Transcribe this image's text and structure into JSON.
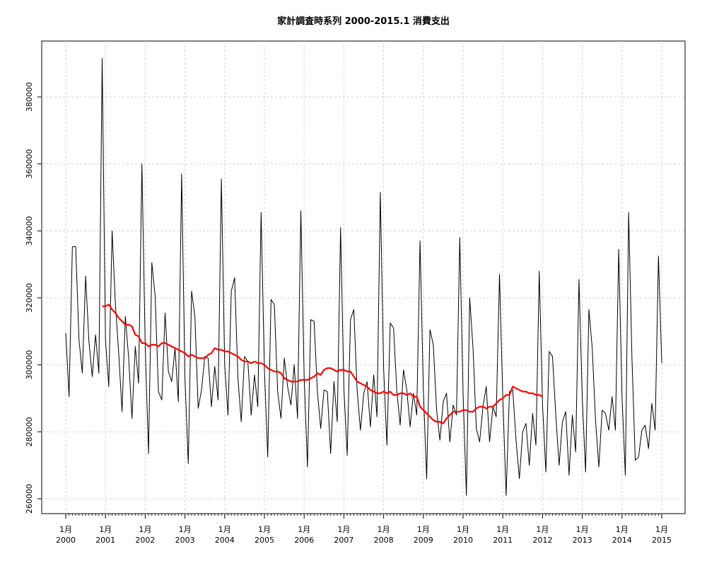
{
  "chart_data": {
    "type": "line",
    "title": "家計調査時系列 2000-2015.1 消費支出",
    "xlabel": "",
    "ylabel": "",
    "x_start": "2000-01",
    "x_end": "2015-01",
    "frequency": "monthly",
    "ylim": [
      255000,
      395000
    ],
    "y_ticks": [
      260000,
      280000,
      300000,
      320000,
      340000,
      360000,
      380000
    ],
    "y_tick_labels": [
      "260000",
      "280000",
      "300000",
      "320000",
      "340000",
      "360000",
      "380000"
    ],
    "x_tick_labels": [
      {
        "month": "1月",
        "year": "2000"
      },
      {
        "month": "1月",
        "year": "2001"
      },
      {
        "month": "1月",
        "year": "2002"
      },
      {
        "month": "1月",
        "year": "2003"
      },
      {
        "month": "1月",
        "year": "2004"
      },
      {
        "month": "1月",
        "year": "2005"
      },
      {
        "month": "1月",
        "year": "2006"
      },
      {
        "month": "1月",
        "year": "2007"
      },
      {
        "month": "1月",
        "year": "2008"
      },
      {
        "month": "1月",
        "year": "2009"
      },
      {
        "month": "1月",
        "year": "2010"
      },
      {
        "month": "1月",
        "year": "2011"
      },
      {
        "month": "1月",
        "year": "2012"
      },
      {
        "month": "1月",
        "year": "2013"
      },
      {
        "month": "1月",
        "year": "2014"
      },
      {
        "month": "1月",
        "year": "2015"
      }
    ],
    "grid": true,
    "series": [
      {
        "color": "#000000",
        "values": [
          309500,
          290500,
          335300,
          335300,
          307500,
          297500,
          326500,
          307000,
          296500,
          309000,
          297500,
          391500,
          307500,
          293500,
          340000,
          318000,
          303500,
          286000,
          314500,
          302000,
          284000,
          305500,
          294500,
          360000,
          305500,
          273500,
          330500,
          320500,
          292000,
          289500,
          315500,
          298000,
          295000,
          305000,
          289000,
          357000,
          296000,
          270500,
          322000,
          314500,
          287000,
          292500,
          302500,
          302000,
          287500,
          299500,
          289500,
          355500,
          300000,
          285000,
          322000,
          326000,
          296000,
          283000,
          302500,
          301000,
          285000,
          297000,
          287500,
          345500,
          298500,
          272500,
          319500,
          318000,
          292000,
          284000,
          302000,
          293500,
          288000,
          300000,
          284000,
          346000,
          296500,
          269500,
          313500,
          313000,
          292000,
          281000,
          292500,
          292000,
          273500,
          295000,
          283000,
          341000,
          293000,
          273000,
          313500,
          316500,
          292500,
          280500,
          291500,
          295000,
          281500,
          297000,
          284500,
          351500,
          299000,
          276000,
          312500,
          311000,
          292000,
          282000,
          298500,
          292500,
          281500,
          291500,
          285000,
          337000,
          292500,
          266000,
          310500,
          306000,
          286500,
          277500,
          289000,
          291500,
          277000,
          288000,
          285000,
          338000,
          291500,
          261000,
          320000,
          305000,
          281000,
          277000,
          287500,
          293500,
          277000,
          287500,
          284500,
          327000,
          290000,
          261000,
          292000,
          292500,
          277500,
          266000,
          280000,
          282500,
          270000,
          285500,
          276000,
          328000,
          288000,
          268000,
          304000,
          302500,
          285000,
          270000,
          283000,
          286000,
          267000,
          285000,
          274000,
          325500,
          290000,
          268000,
          316500,
          305000,
          283500,
          269500,
          286500,
          285500,
          280500,
          290500,
          280500,
          334500,
          290500,
          267000,
          345500,
          302000,
          271500,
          272500,
          280500,
          282000,
          275000,
          288500,
          280500,
          332500,
          300500
        ]
      },
      {
        "color": "#ff0000",
        "start_index": 11,
        "values": [
          317500,
          317500,
          318000,
          316500,
          315500,
          314000,
          313000,
          312000,
          312000,
          311500,
          309000,
          308500,
          306500,
          306500,
          305500,
          306000,
          306000,
          305500,
          306500,
          306500,
          306000,
          305500,
          305000,
          304500,
          304000,
          303500,
          302500,
          303000,
          302500,
          302000,
          302000,
          302000,
          303000,
          303500,
          305000,
          304500,
          304500,
          304000,
          304000,
          303500,
          303000,
          302500,
          301500,
          301000,
          301000,
          300500,
          301000,
          300500,
          300500,
          300000,
          299000,
          298500,
          298000,
          298000,
          297500,
          296000,
          295500,
          295000,
          295000,
          295000,
          295500,
          295500,
          295500,
          296000,
          296500,
          297500,
          297000,
          298500,
          299000,
          299000,
          298500,
          298000,
          298500,
          298500,
          298000,
          298000,
          296500,
          295000,
          294500,
          294000,
          293500,
          292500,
          292000,
          291500,
          291500,
          292000,
          291500,
          292000,
          291000,
          291000,
          291500,
          291500,
          291000,
          291500,
          290500,
          290500,
          287500,
          286500,
          285500,
          284500,
          283500,
          283000,
          283000,
          282500,
          284000,
          285000,
          286000,
          286000,
          286000,
          286500,
          286500,
          286000,
          286000,
          287000,
          287500,
          287500,
          287000,
          287500,
          287500,
          288500,
          289500,
          290000,
          291000,
          291000,
          293500,
          293000,
          292500,
          292000,
          292000,
          291500,
          291500,
          291000,
          291000,
          290500
        ]
      }
    ]
  }
}
